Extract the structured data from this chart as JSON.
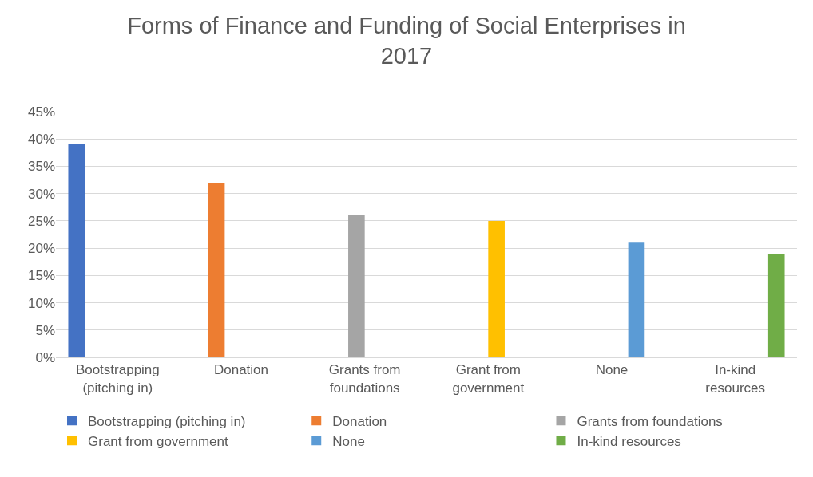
{
  "chart_data": {
    "type": "bar",
    "title": "Forms of Finance and Funding of Social Enterprises in 2017",
    "categories": [
      "Bootstrapping (pitching in)",
      "Donation",
      "Grants from foundations",
      "Grant from government",
      "None",
      "In-kind resources"
    ],
    "series": [
      {
        "name": "Bootstrapping (pitching in)",
        "color": "#4472c4",
        "values": [
          39,
          null,
          null,
          null,
          null,
          null
        ]
      },
      {
        "name": "Donation",
        "color": "#ed7d31",
        "values": [
          null,
          32,
          null,
          null,
          null,
          null
        ]
      },
      {
        "name": "Grants from foundations",
        "color": "#a5a5a5",
        "values": [
          null,
          null,
          26,
          null,
          null,
          null
        ]
      },
      {
        "name": "Grant from government",
        "color": "#ffc000",
        "values": [
          null,
          null,
          null,
          25,
          null,
          null
        ]
      },
      {
        "name": "None",
        "color": "#5b9bd5",
        "values": [
          null,
          null,
          null,
          null,
          21,
          null
        ]
      },
      {
        "name": "In-kind resources",
        "color": "#70ad47",
        "values": [
          null,
          null,
          null,
          null,
          null,
          19
        ]
      }
    ],
    "ylim": [
      0,
      45
    ],
    "yticks": [
      {
        "value": 0,
        "label": "0%"
      },
      {
        "value": 5,
        "label": "5%"
      },
      {
        "value": 10,
        "label": "10%"
      },
      {
        "value": 15,
        "label": "15%"
      },
      {
        "value": 20,
        "label": "20%"
      },
      {
        "value": 25,
        "label": "25%"
      },
      {
        "value": 30,
        "label": "30%"
      },
      {
        "value": 35,
        "label": "35%"
      },
      {
        "value": 40,
        "label": "40%"
      },
      {
        "value": 45,
        "label": "45%"
      }
    ],
    "grid": "y",
    "legend": "bottom"
  }
}
